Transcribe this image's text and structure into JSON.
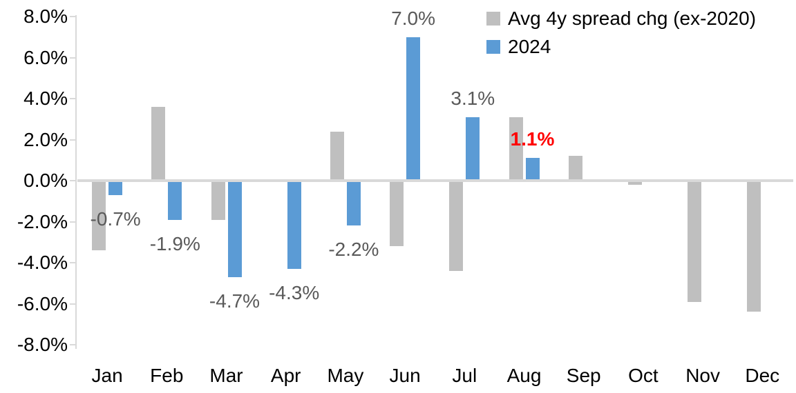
{
  "chart_data": {
    "type": "bar",
    "title": "",
    "categories": [
      "Jan",
      "Feb",
      "Mar",
      "Apr",
      "May",
      "Jun",
      "Jul",
      "Aug",
      "Sep",
      "Oct",
      "Nov",
      "Dec"
    ],
    "series": [
      {
        "name": "Avg 4y spread chg (ex-2020)",
        "color": "#BFBFBF",
        "values": [
          -3.4,
          3.6,
          -1.9,
          0.0,
          2.4,
          -3.2,
          -4.4,
          3.1,
          1.2,
          -0.2,
          -5.9,
          -6.4
        ]
      },
      {
        "name": "2024",
        "color": "#5B9BD5",
        "values": [
          -0.7,
          -1.9,
          -4.7,
          -4.3,
          -2.2,
          7.0,
          3.1,
          1.1,
          null,
          null,
          null,
          null
        ],
        "labels": [
          {
            "text": "-0.7%",
            "color": "#595959",
            "bold": false
          },
          {
            "text": "-1.9%",
            "color": "#595959",
            "bold": false
          },
          {
            "text": "-4.7%",
            "color": "#595959",
            "bold": false
          },
          {
            "text": "-4.3%",
            "color": "#595959",
            "bold": false
          },
          {
            "text": "-2.2%",
            "color": "#595959",
            "bold": false
          },
          {
            "text": "7.0%",
            "color": "#595959",
            "bold": false
          },
          {
            "text": "3.1%",
            "color": "#595959",
            "bold": false
          },
          {
            "text": "1.1%",
            "color": "#FF0000",
            "bold": true
          },
          null,
          null,
          null,
          null
        ]
      }
    ],
    "y_axis": {
      "tick_labels": [
        "8.0%",
        "6.0%",
        "4.0%",
        "2.0%",
        "0.0%",
        "-2.0%",
        "-4.0%",
        "-6.0%",
        "-8.0%"
      ],
      "tick_values": [
        8,
        6,
        4,
        2,
        0,
        -2,
        -4,
        -6,
        -8
      ],
      "min": -8,
      "max": 8,
      "format": "percent"
    },
    "x_axis": {
      "label": ""
    },
    "legend": {
      "position": "top-right",
      "entries": [
        {
          "label": "Avg 4y spread chg (ex-2020)",
          "color": "#BFBFBF"
        },
        {
          "label": "2024",
          "color": "#5B9BD5"
        }
      ]
    },
    "grid": "zero-line-only",
    "colors": {
      "axis_line": "#D9D9D9",
      "tick_text": "#000000",
      "data_label": "#595959",
      "highlight_label": "#FF0000",
      "background": "#FFFFFF"
    }
  }
}
